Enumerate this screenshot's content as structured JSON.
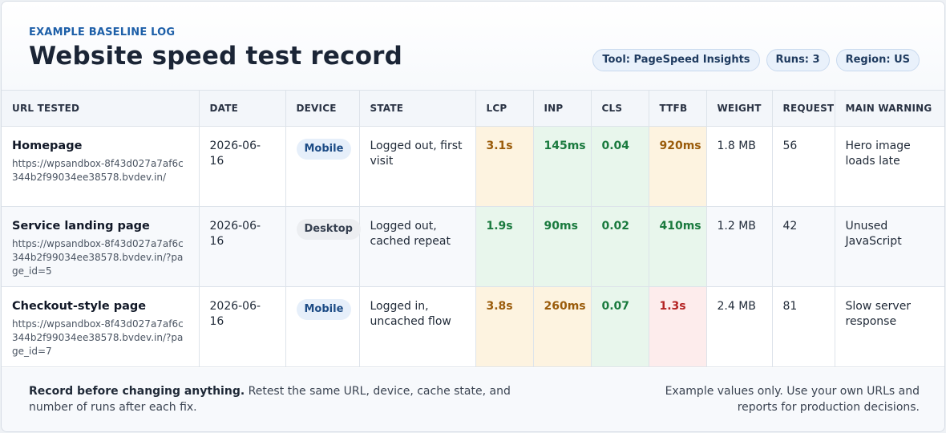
{
  "header": {
    "eyebrow": "EXAMPLE BASELINE LOG",
    "title": "Website speed test record",
    "pills": [
      "Tool: PageSpeed Insights",
      "Runs: 3",
      "Region: US"
    ]
  },
  "table": {
    "columns": [
      "URL TESTED",
      "DATE",
      "DEVICE",
      "STATE",
      "LCP",
      "INP",
      "CLS",
      "TTFB",
      "WEIGHT",
      "REQUESTS",
      "MAIN WARNING"
    ],
    "rows": [
      {
        "page": "Homepage",
        "url": "https://wpsandbox-8f43d027a7af6c344b2f99034ee38578.bvdev.in/",
        "date": "2026-06-16",
        "device": "Mobile",
        "state": "Logged out, first visit",
        "lcp": "3.1s",
        "inp": "145ms",
        "cls": "0.04",
        "ttfb": "920ms",
        "weight": "1.8 MB",
        "requests": "56",
        "warning": "Hero image loads late"
      },
      {
        "page": "Service landing page",
        "url": "https://wpsandbox-8f43d027a7af6c344b2f99034ee38578.bvdev.in/?page_id=5",
        "date": "2026-06-16",
        "device": "Desktop",
        "state": "Logged out, cached repeat",
        "lcp": "1.9s",
        "inp": "90ms",
        "cls": "0.02",
        "ttfb": "410ms",
        "weight": "1.2 MB",
        "requests": "42",
        "warning": "Unused JavaScript"
      },
      {
        "page": "Checkout-style page",
        "url": "https://wpsandbox-8f43d027a7af6c344b2f99034ee38578.bvdev.in/?page_id=7",
        "date": "2026-06-16",
        "device": "Mobile",
        "state": "Logged in, uncached flow",
        "lcp": "3.8s",
        "inp": "260ms",
        "cls": "0.07",
        "ttfb": "1.3s",
        "weight": "2.4 MB",
        "requests": "81",
        "warning": "Slow server response"
      }
    ]
  },
  "footer": {
    "left_bold": "Record before changing anything.",
    "left_text": " Retest the same URL, device, cache state, and number of runs after each fix.",
    "right_text": "Example values only. Use your own URLs and reports for production decisions."
  }
}
